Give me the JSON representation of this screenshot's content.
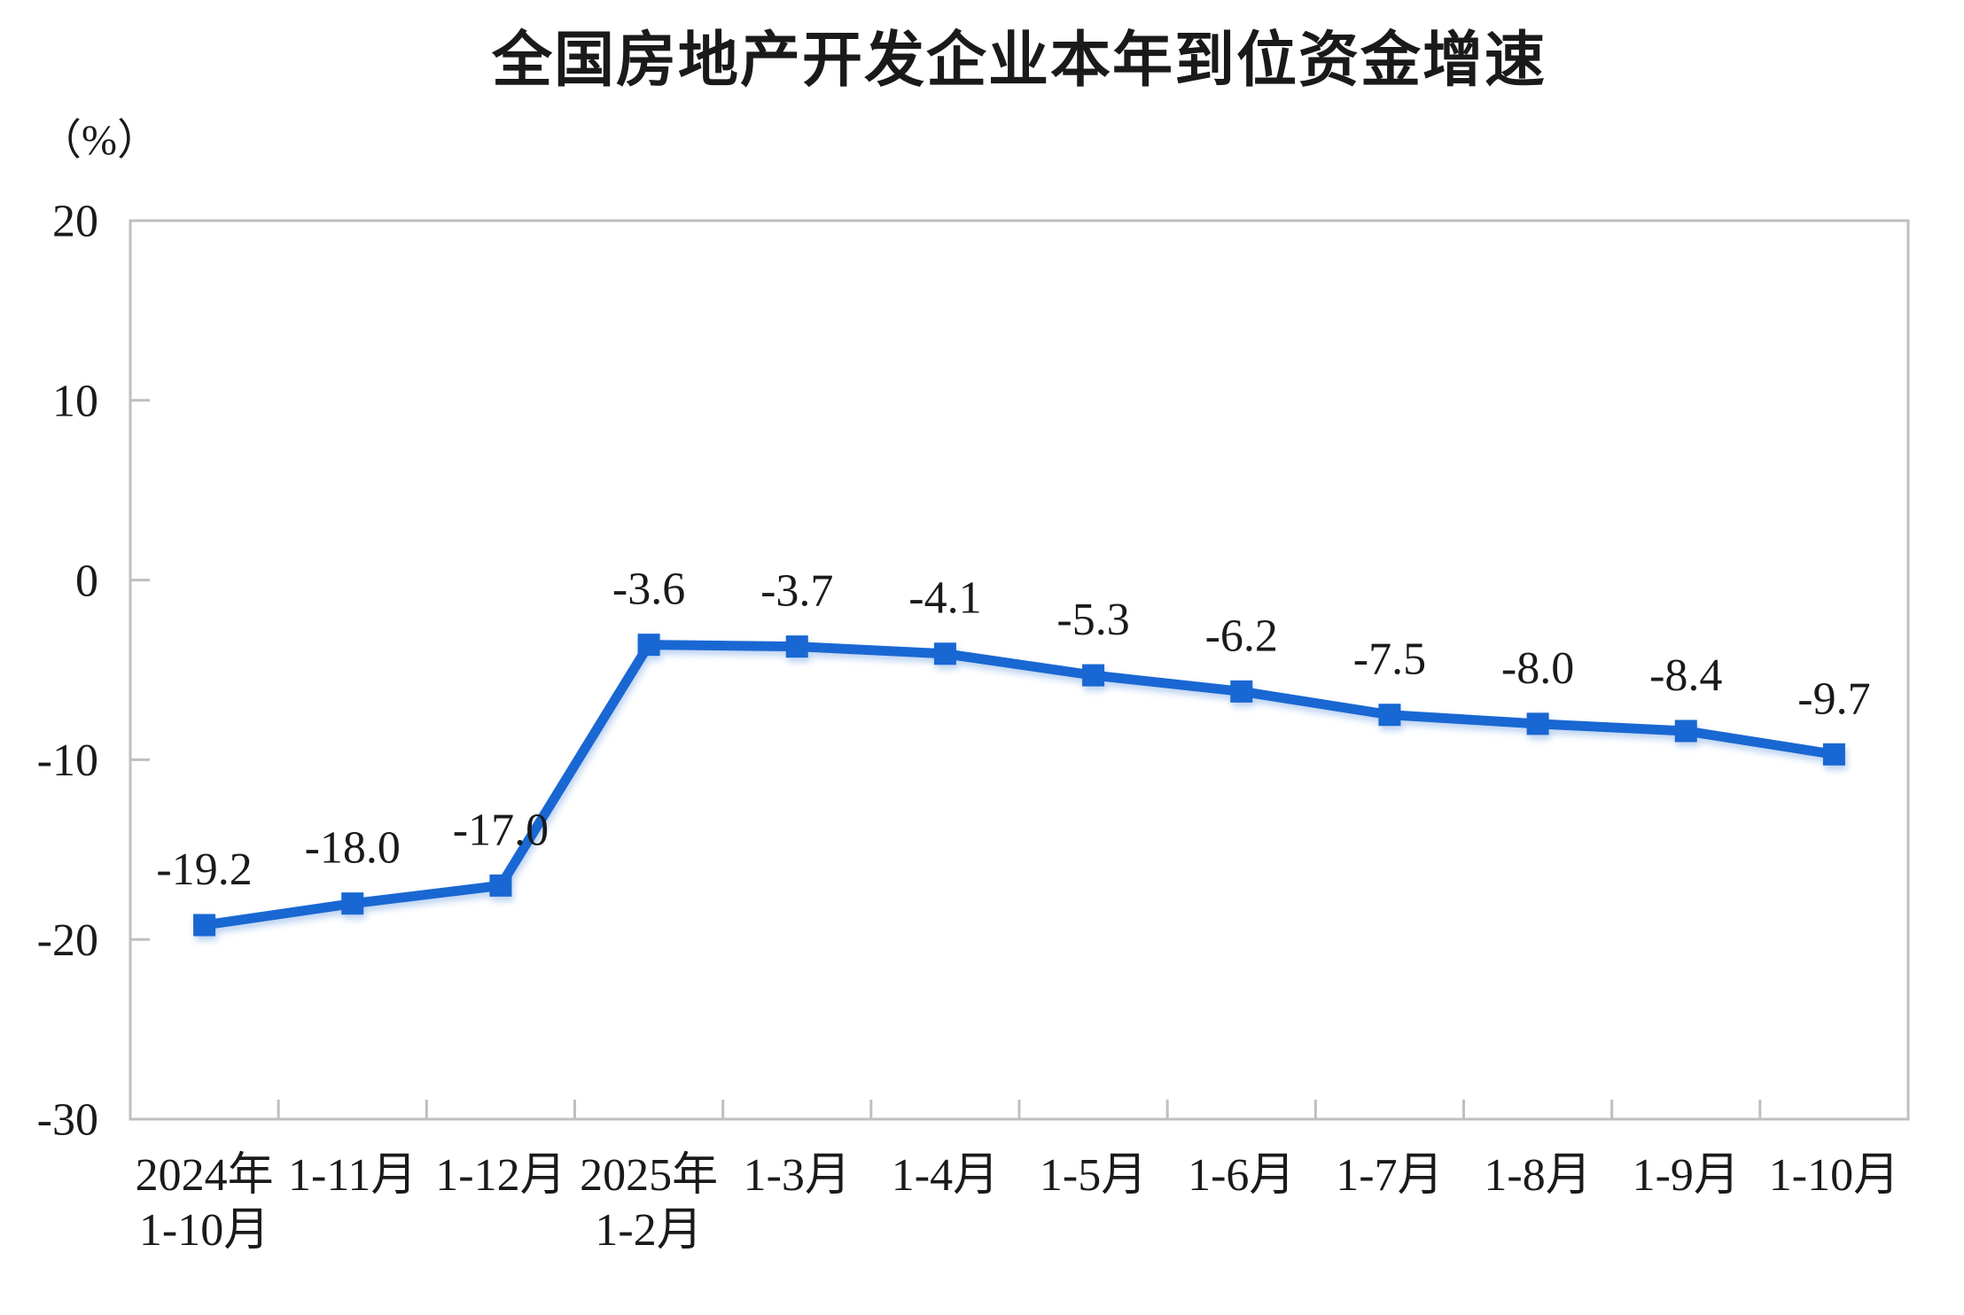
{
  "chart_data": {
    "type": "line",
    "title": "全国房地产开发企业本年到位资金增速",
    "ylabel": "（%）",
    "xlabel": "",
    "categories": [
      "2024年\n1-10月",
      "1-11月",
      "1-12月",
      "2025年\n1-2月",
      "1-3月",
      "1-4月",
      "1-5月",
      "1-6月",
      "1-7月",
      "1-8月",
      "1-9月",
      "1-10月"
    ],
    "values": [
      -19.2,
      -18.0,
      -17.0,
      -3.6,
      -3.7,
      -4.1,
      -5.3,
      -6.2,
      -7.5,
      -8.0,
      -8.4,
      -9.7
    ],
    "data_labels": [
      "-19.2",
      "-18.0",
      "-17.0",
      "-3.6",
      "-3.7",
      "-4.1",
      "-5.3",
      "-6.2",
      "-7.5",
      "-8.0",
      "-8.4",
      "-9.7"
    ],
    "yticks": [
      20,
      10,
      0,
      -10,
      -20,
      -30
    ],
    "ylim": [
      -30,
      20
    ],
    "grid": false,
    "legend_position": "none",
    "marker": "square",
    "line_color": "#1967D2",
    "axis_color": "#BFBFBF",
    "text_color": "#1A1A1A"
  }
}
